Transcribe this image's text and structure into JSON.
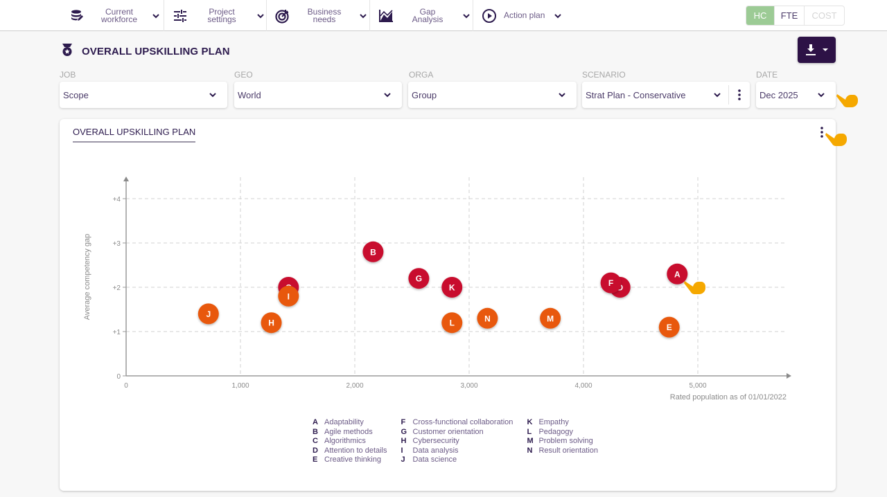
{
  "nav": {
    "items": [
      {
        "label_line1": "Current",
        "label_line2": "workforce",
        "icon": "database-edit-icon"
      },
      {
        "label_line1": "Project",
        "label_line2": "settings",
        "icon": "sliders-icon"
      },
      {
        "label_line1": "Business",
        "label_line2": "needs",
        "icon": "target-icon"
      },
      {
        "label_line1": "Gap",
        "label_line2": "Analysis",
        "icon": "area-chart-icon"
      },
      {
        "label_line1": "Action plan",
        "label_line2": "",
        "icon": "play-circle-icon"
      }
    ],
    "unit_toggle": {
      "options": [
        "HC",
        "FTE",
        "COST"
      ],
      "selected": "HC",
      "disabled": [
        "COST"
      ]
    }
  },
  "page": {
    "title": "OVERALL UPSKILLING PLAN",
    "title_icon": "medal-icon",
    "download_icon": "download-icon"
  },
  "filters": [
    {
      "label": "JOB",
      "value": "Scope"
    },
    {
      "label": "GEO",
      "value": "World"
    },
    {
      "label": "ORGA",
      "value": "Group"
    },
    {
      "label": "SCENARIO",
      "value": "Strat Plan - Conservative"
    },
    {
      "label": "DATE",
      "value": "Dec 2025"
    }
  ],
  "card": {
    "title": "OVERALL UPSKILLING PLAN"
  },
  "colors": {
    "primary": "#2d1246",
    "high_gap": "#c8102e",
    "medium_gap": "#e8590c",
    "hc_active": "#9ccb95",
    "cursor_hand": "#f5a800"
  },
  "chart_data": {
    "type": "scatter",
    "title": "OVERALL UPSKILLING PLAN",
    "xlabel": "Rated population as of 01/01/2022",
    "ylabel": "Average competency gap",
    "xlim": [
      0,
      5800
    ],
    "ylim": [
      0,
      4.4
    ],
    "x_ticks": [
      0,
      1000,
      2000,
      3000,
      4000,
      5000
    ],
    "x_tick_labels": [
      "0",
      "1,000",
      "2,000",
      "3,000",
      "4,000",
      "5,000"
    ],
    "y_ticks": [
      0,
      1,
      2,
      3,
      4
    ],
    "y_tick_labels": [
      "0",
      "+1",
      "+2",
      "+3",
      "+4"
    ],
    "grid": true,
    "legend_position": "bottom",
    "points": [
      {
        "key": "A",
        "name": "Adaptability",
        "x": 4820,
        "y": 2.3,
        "group": "high"
      },
      {
        "key": "B",
        "name": "Agile methods",
        "x": 2160,
        "y": 2.8,
        "group": "high"
      },
      {
        "key": "C",
        "name": "Algorithmics",
        "x": 1420,
        "y": 2.0,
        "group": "high"
      },
      {
        "key": "D",
        "name": "Attention to details",
        "x": 4320,
        "y": 2.0,
        "group": "high"
      },
      {
        "key": "E",
        "name": "Creative thinking",
        "x": 4750,
        "y": 1.1,
        "group": "medium"
      },
      {
        "key": "F",
        "name": "Cross-functional collaboration",
        "x": 4240,
        "y": 2.1,
        "group": "high"
      },
      {
        "key": "G",
        "name": "Customer orientation",
        "x": 2560,
        "y": 2.2,
        "group": "high"
      },
      {
        "key": "H",
        "name": "Cybersecurity",
        "x": 1270,
        "y": 1.2,
        "group": "medium"
      },
      {
        "key": "I",
        "name": "Data analysis",
        "x": 1420,
        "y": 1.8,
        "group": "medium"
      },
      {
        "key": "J",
        "name": "Data science",
        "x": 720,
        "y": 1.4,
        "group": "medium"
      },
      {
        "key": "K",
        "name": "Empathy",
        "x": 2850,
        "y": 2.0,
        "group": "high"
      },
      {
        "key": "L",
        "name": "Pedagogy",
        "x": 2850,
        "y": 1.2,
        "group": "medium"
      },
      {
        "key": "M",
        "name": "Problem solving",
        "x": 3710,
        "y": 1.3,
        "group": "medium"
      },
      {
        "key": "N",
        "name": "Result orientation",
        "x": 3160,
        "y": 1.3,
        "group": "medium"
      }
    ]
  }
}
